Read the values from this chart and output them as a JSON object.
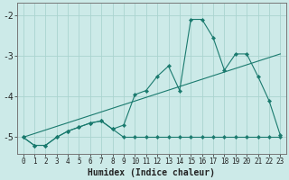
{
  "xlabel": "Humidex (Indice chaleur)",
  "background_color": "#cceae8",
  "grid_color": "#aad4d0",
  "line_color": "#1a7a6e",
  "x_min": -0.5,
  "x_max": 23.5,
  "y_min": -5.4,
  "y_max": -1.7,
  "yticks": [
    -5,
    -4,
    -3,
    -2
  ],
  "xtick_labels": [
    "0",
    "1",
    "2",
    "3",
    "4",
    "5",
    "6",
    "7",
    "8",
    "9",
    "10",
    "11",
    "12",
    "13",
    "14",
    "15",
    "16",
    "17",
    "18",
    "19",
    "20",
    "21",
    "22",
    "23"
  ],
  "curve1_x": [
    0,
    1,
    2,
    3,
    4,
    5,
    6,
    7,
    8,
    9,
    10,
    11,
    12,
    13,
    14,
    15,
    16,
    17,
    18,
    19,
    20,
    21,
    22,
    23
  ],
  "curve1_y": [
    -5.0,
    -5.2,
    -5.2,
    -5.0,
    -4.85,
    -4.75,
    -4.65,
    -4.6,
    -4.8,
    -4.7,
    -3.95,
    -3.85,
    -3.5,
    -3.25,
    -3.85,
    -2.1,
    -2.1,
    -2.55,
    -3.35,
    -2.95,
    -2.95,
    -3.5,
    -4.1,
    -4.95
  ],
  "curve2_x": [
    0,
    1,
    2,
    3,
    4,
    5,
    6,
    7,
    8,
    9,
    10,
    11,
    12,
    13,
    14,
    15,
    16,
    17,
    18,
    19,
    20,
    21,
    22,
    23
  ],
  "curve2_y": [
    -5.0,
    -5.2,
    -5.2,
    -5.0,
    -4.85,
    -4.75,
    -4.65,
    -4.6,
    -4.8,
    -5.0,
    -5.0,
    -5.0,
    -5.0,
    -5.0,
    -5.0,
    -5.0,
    -5.0,
    -5.0,
    -5.0,
    -5.0,
    -5.0,
    -5.0,
    -5.0,
    -5.0
  ],
  "trend_x": [
    0,
    23
  ],
  "trend_y": [
    -5.0,
    -2.95
  ]
}
